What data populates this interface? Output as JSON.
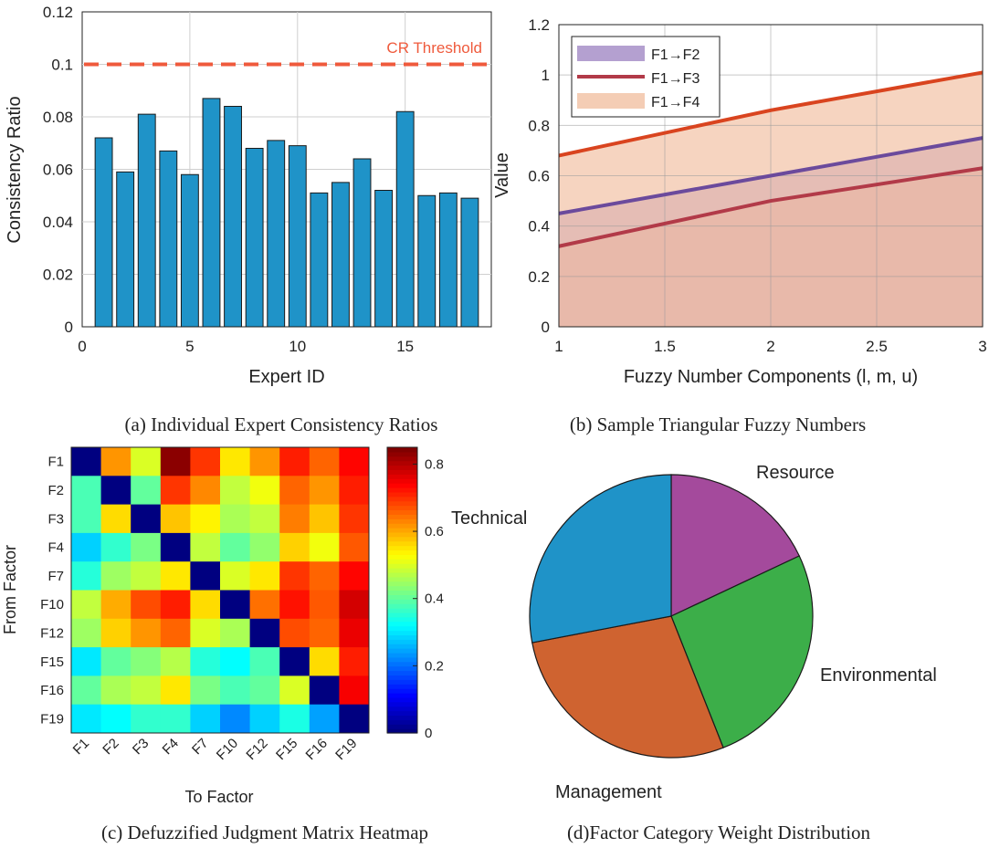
{
  "panels": {
    "a": {
      "caption": "(a) Individual Expert Consistency Ratios",
      "chart_data": {
        "type": "bar",
        "x": [
          1,
          2,
          3,
          4,
          5,
          6,
          7,
          8,
          9,
          10,
          11,
          12,
          13,
          14,
          15,
          16,
          17,
          18
        ],
        "values": [
          0.072,
          0.059,
          0.081,
          0.067,
          0.058,
          0.087,
          0.084,
          0.068,
          0.071,
          0.069,
          0.051,
          0.055,
          0.064,
          0.052,
          0.082,
          0.05,
          0.051,
          0.049
        ],
        "xlabel": "Expert ID",
        "ylabel": "Consistency Ratio",
        "xlim": [
          0,
          19
        ],
        "ylim": [
          0,
          0.12
        ],
        "xticks": [
          "0",
          "5",
          "10",
          "15"
        ],
        "yticks": [
          "0",
          "0.02",
          "0.04",
          "0.06",
          "0.08",
          "0.1",
          "0.12"
        ],
        "threshold": 0.1,
        "threshold_label": "CR Threshold",
        "grid": true,
        "bar_color": "#1f93c8",
        "threshold_color": "#ef5a3c"
      }
    },
    "b": {
      "caption": "(b) Sample Triangular Fuzzy Numbers",
      "chart_data": {
        "type": "area",
        "x": [
          1,
          2,
          3
        ],
        "series": [
          {
            "name": "F1→F2",
            "values": [
              0.45,
              0.6,
              0.75
            ],
            "fill": "#a78fc8",
            "line": "#6b4a9c"
          },
          {
            "name": "F1→F3",
            "values": [
              0.32,
              0.5,
              0.63
            ],
            "fill": "#d29aa0",
            "line": "#b23a48"
          },
          {
            "name": "F1→F4",
            "values": [
              0.68,
              0.86,
              1.01
            ],
            "fill": "#f2c4a8",
            "line": "#d9441f"
          }
        ],
        "xlabel": "Fuzzy Number Components (l, m, u)",
        "ylabel": "Value",
        "xlim": [
          1,
          3
        ],
        "ylim": [
          0,
          1.2
        ],
        "xticks": [
          "1",
          "1.5",
          "2",
          "2.5",
          "3"
        ],
        "yticks": [
          "0",
          "0.2",
          "0.4",
          "0.6",
          "0.8",
          "1",
          "1.2"
        ],
        "grid": true,
        "legend": "top-left"
      }
    },
    "c": {
      "caption": "(c) Defuzzified Judgment Matrix Heatmap",
      "chart_data": {
        "type": "heatmap",
        "rows": [
          "F1",
          "F2",
          "F3",
          "F4",
          "F7",
          "F10",
          "F12",
          "F15",
          "F16",
          "F19"
        ],
        "cols": [
          "F1",
          "F2",
          "F3",
          "F4",
          "F7",
          "F10",
          "F12",
          "F15",
          "F16",
          "F19"
        ],
        "values": [
          [
            0.0,
            0.62,
            0.5,
            0.84,
            0.7,
            0.55,
            0.62,
            0.72,
            0.66,
            0.74
          ],
          [
            0.38,
            0.0,
            0.4,
            0.7,
            0.63,
            0.48,
            0.52,
            0.66,
            0.62,
            0.72
          ],
          [
            0.38,
            0.56,
            0.0,
            0.58,
            0.54,
            0.46,
            0.48,
            0.64,
            0.58,
            0.7
          ],
          [
            0.28,
            0.36,
            0.42,
            0.0,
            0.48,
            0.4,
            0.44,
            0.57,
            0.52,
            0.67
          ],
          [
            0.35,
            0.45,
            0.48,
            0.55,
            0.0,
            0.5,
            0.55,
            0.7,
            0.66,
            0.74
          ],
          [
            0.48,
            0.6,
            0.68,
            0.72,
            0.56,
            0.0,
            0.65,
            0.73,
            0.67,
            0.78
          ],
          [
            0.45,
            0.57,
            0.62,
            0.66,
            0.5,
            0.46,
            0.0,
            0.68,
            0.66,
            0.76
          ],
          [
            0.3,
            0.4,
            0.43,
            0.47,
            0.35,
            0.32,
            0.38,
            0.0,
            0.56,
            0.72
          ],
          [
            0.4,
            0.46,
            0.48,
            0.55,
            0.42,
            0.38,
            0.4,
            0.5,
            0.0,
            0.75
          ],
          [
            0.3,
            0.32,
            0.36,
            0.36,
            0.28,
            0.22,
            0.28,
            0.34,
            0.24,
            0.0
          ]
        ],
        "xlabel": "To Factor",
        "ylabel": "From Factor",
        "colorbar_ticks": [
          "0",
          "0.2",
          "0.4",
          "0.6",
          "0.8"
        ],
        "colorbar_range": [
          0,
          0.85
        ],
        "colormap": "jet"
      }
    },
    "d": {
      "caption": "(d)Factor Category Weight Distribution",
      "chart_data": {
        "type": "pie",
        "slices": [
          {
            "label": "Resource",
            "value": 0.18,
            "color": "#a44a9c"
          },
          {
            "label": "Environmental",
            "value": 0.26,
            "color": "#3cae49"
          },
          {
            "label": "Management",
            "value": 0.28,
            "color": "#cf6330"
          },
          {
            "label": "Technical",
            "value": 0.28,
            "color": "#1f93c8"
          }
        ],
        "start": "12 o'clock",
        "direction": "clockwise"
      }
    }
  }
}
